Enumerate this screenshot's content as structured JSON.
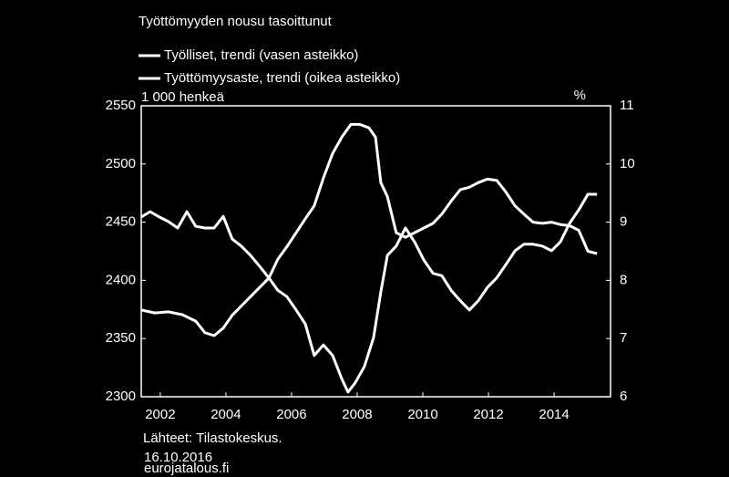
{
  "chart_data": {
    "type": "line",
    "title": "Työttömyyden nousu tasoittunut",
    "y_unit": "1 000 henkeä",
    "y2_unit": "%",
    "source": "Lähteet:  Tilastokeskus.",
    "date": "16.10.2016",
    "site": "eurojatalous.fi",
    "xlim": [
      2001.42,
      2015.72
    ],
    "xticks": [
      2002,
      2004,
      2006,
      2008,
      2010,
      2012,
      2014
    ],
    "ylim": [
      2300,
      2550
    ],
    "yticks": [
      2300,
      2350,
      2400,
      2450,
      2500,
      2550
    ],
    "y2lim": [
      6,
      11
    ],
    "y2ticks": [
      6,
      7,
      8,
      9,
      10,
      11
    ],
    "grid": false,
    "series": [
      {
        "name": "Työlliset, trendi (vasen asteikko)",
        "color": "#ffffff",
        "x": [
          2001.42,
          2001.83,
          2002.25,
          2002.67,
          2003.08,
          2003.36,
          2003.64,
          2003.92,
          2004.19,
          2004.47,
          2004.75,
          2005.03,
          2005.31,
          2005.58,
          2005.86,
          2006.14,
          2006.42,
          2006.69,
          2006.97,
          2007.25,
          2007.53,
          2007.81,
          2008.08,
          2008.36,
          2008.56,
          2008.72,
          2008.92,
          2009.19,
          2009.47,
          2009.75,
          2010.03,
          2010.31,
          2010.58,
          2010.86,
          2011.14,
          2011.42,
          2011.69,
          2011.97,
          2012.25,
          2012.53,
          2012.81,
          2013.08,
          2013.36,
          2013.64,
          2013.92,
          2014.19,
          2014.47,
          2014.75,
          2015.03,
          2015.31
        ],
        "values": [
          2374.5,
          2372,
          2373,
          2370.5,
          2365,
          2355,
          2352.5,
          2359,
          2370,
          2378,
          2386,
          2394,
          2402,
          2418,
          2429,
          2441,
          2453,
          2464,
          2488,
          2509,
          2523,
          2534,
          2534,
          2531,
          2523,
          2484,
          2472,
          2441,
          2437,
          2441,
          2445,
          2449,
          2457,
          2468,
          2478,
          2480,
          2484,
          2487,
          2486,
          2476,
          2464,
          2457,
          2450,
          2449,
          2450,
          2448,
          2447,
          2443,
          2425,
          2423
        ]
      },
      {
        "name": "Työttömyysaste, trendi (oikea asteikko)",
        "color": "#ffffff",
        "axis": "y2",
        "x": [
          2001.42,
          2001.69,
          2001.97,
          2002.25,
          2002.53,
          2002.81,
          2003.08,
          2003.36,
          2003.64,
          2003.92,
          2004.19,
          2004.47,
          2004.75,
          2005.03,
          2005.31,
          2005.58,
          2005.86,
          2006.14,
          2006.42,
          2006.69,
          2006.97,
          2007.25,
          2007.53,
          2007.72,
          2007.94,
          2008.22,
          2008.5,
          2008.72,
          2008.92,
          2009.19,
          2009.47,
          2009.75,
          2010.03,
          2010.31,
          2010.58,
          2010.86,
          2011.14,
          2011.42,
          2011.69,
          2011.97,
          2012.25,
          2012.53,
          2012.81,
          2013.08,
          2013.36,
          2013.64,
          2013.92,
          2014.19,
          2014.47,
          2014.75,
          2015.03,
          2015.31
        ],
        "values": [
          9.09,
          9.18,
          9.09,
          9.01,
          8.9,
          9.18,
          8.93,
          8.9,
          8.9,
          9.1,
          8.71,
          8.59,
          8.43,
          8.24,
          8.04,
          7.83,
          7.72,
          7.49,
          7.25,
          6.71,
          6.89,
          6.71,
          6.31,
          6.08,
          6.24,
          6.52,
          7.02,
          7.8,
          8.43,
          8.59,
          8.9,
          8.66,
          8.35,
          8.12,
          8.08,
          7.83,
          7.65,
          7.49,
          7.65,
          7.88,
          8.04,
          8.27,
          8.51,
          8.62,
          8.62,
          8.59,
          8.51,
          8.66,
          8.98,
          9.21,
          9.48,
          9.48
        ]
      }
    ]
  }
}
